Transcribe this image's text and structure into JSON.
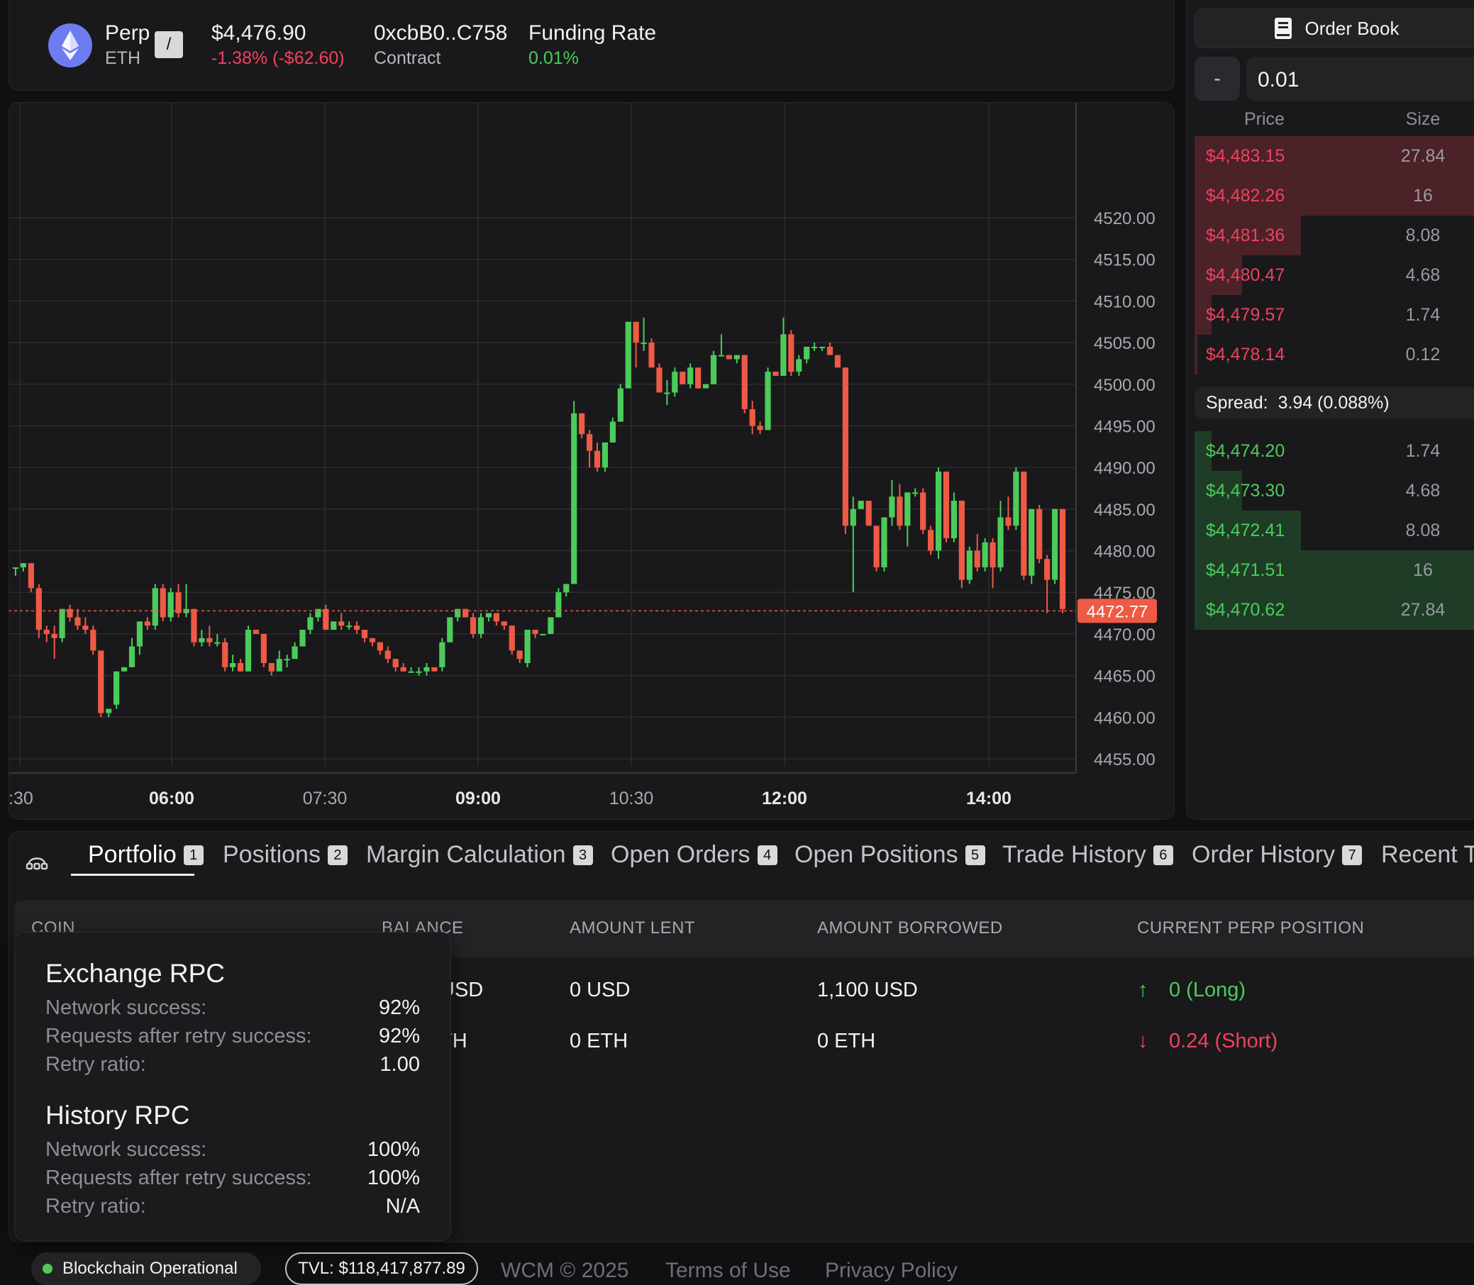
{
  "header": {
    "market_label": "Perp",
    "market_sub": "ETH",
    "slash_key": "/",
    "price": "$4,476.90",
    "change": "-1.38% (-$62.60)",
    "contract_value": "0xcbB0..C758",
    "contract_label": "Contract",
    "funding_label": "Funding Rate",
    "funding_value": "0.01%"
  },
  "chart_data": {
    "type": "candlestick",
    "y_ticks": [
      "4520.00",
      "4515.00",
      "4510.00",
      "4505.00",
      "4500.00",
      "4495.00",
      "4490.00",
      "4485.00",
      "4480.00",
      "4475.00",
      "4470.00",
      "4465.00",
      "4460.00",
      "4455.00"
    ],
    "ylim": [
      4453,
      4522
    ],
    "x_ticks": [
      {
        "label": ":30",
        "bold": false
      },
      {
        "label": "06:00",
        "bold": true
      },
      {
        "label": "07:30",
        "bold": false
      },
      {
        "label": "09:00",
        "bold": true
      },
      {
        "label": "10:30",
        "bold": false
      },
      {
        "label": "12:00",
        "bold": true
      },
      {
        "label": "14:00",
        "bold": true
      }
    ],
    "last_price": "4472.77",
    "last_price_value": 4472.77,
    "up_color": "#4ccb5a",
    "down_color": "#ef5a45",
    "candles": [
      [
        4478,
        4478,
        4477,
        4478
      ],
      [
        4478,
        4478.5,
        4477.5,
        4478.5
      ],
      [
        4478.5,
        4478.5,
        4475,
        4475.5
      ],
      [
        4475.5,
        4476,
        4469.5,
        4470.5
      ],
      [
        4470.5,
        4471,
        4469,
        4470
      ],
      [
        4470,
        4471,
        4467,
        4469.5
      ],
      [
        4469.5,
        4473,
        4469,
        4473
      ],
      [
        4473,
        4473.5,
        4471.5,
        4472
      ],
      [
        4472,
        4473,
        4470.5,
        4471
      ],
      [
        4471,
        4472,
        4470,
        4470.5
      ],
      [
        4470.5,
        4471,
        4467.5,
        4468
      ],
      [
        4468,
        4468,
        4460,
        4460.5
      ],
      [
        4460.5,
        4461,
        4460,
        4461
      ],
      [
        4461.5,
        4465.5,
        4461,
        4465.5
      ],
      [
        4465.5,
        4466,
        4465.5,
        4466
      ],
      [
        4466,
        4469.5,
        4466,
        4468.5
      ],
      [
        4468.5,
        4471.5,
        4467.5,
        4471.5
      ],
      [
        4471.5,
        4472,
        4470.5,
        4471
      ],
      [
        4471,
        4476,
        4470.5,
        4475.5
      ],
      [
        4475.5,
        4476,
        4471.5,
        4472
      ],
      [
        4472,
        4475.5,
        4471.5,
        4475
      ],
      [
        4475,
        4476,
        4472,
        4472.5
      ],
      [
        4472.5,
        4476,
        4472,
        4473
      ],
      [
        4473,
        4473,
        4468.5,
        4469
      ],
      [
        4469,
        4470.5,
        4468.5,
        4469.5
      ],
      [
        4469.5,
        4471,
        4468.5,
        4469
      ],
      [
        4469,
        4470,
        4468.5,
        4469
      ],
      [
        4469,
        4469.5,
        4465.5,
        4466
      ],
      [
        4466,
        4467.5,
        4465.5,
        4466.5
      ],
      [
        4466.5,
        4467,
        4465.5,
        4465.5
      ],
      [
        4465.5,
        4471,
        4465.5,
        4470.5
      ],
      [
        4470.5,
        4470.5,
        4470,
        4470
      ],
      [
        4470,
        4470,
        4466,
        4466.5
      ],
      [
        4466.5,
        4466.5,
        4465,
        4465.5
      ],
      [
        4465.5,
        4468,
        4465.5,
        4467
      ],
      [
        4467,
        4467.5,
        4466,
        4467
      ],
      [
        4467,
        4469,
        4467,
        4468.5
      ],
      [
        4468.5,
        4470.5,
        4468.5,
        4470.5
      ],
      [
        4470.5,
        4472.5,
        4470,
        4472
      ],
      [
        4472,
        4473,
        4471.5,
        4473
      ],
      [
        4473,
        4473.5,
        4470.5,
        4470.5
      ],
      [
        4470.5,
        4471.5,
        4470.5,
        4471.5
      ],
      [
        4471.5,
        4472.5,
        4470.5,
        4471
      ],
      [
        4471,
        4471.5,
        4470.5,
        4471
      ],
      [
        4471,
        4471.5,
        4470,
        4470.5
      ],
      [
        4470.5,
        4470.5,
        4469,
        4469.5
      ],
      [
        4469.5,
        4469.5,
        4468.5,
        4469
      ],
      [
        4469,
        4469,
        4467.5,
        4468
      ],
      [
        4468,
        4468.5,
        4466.5,
        4467
      ],
      [
        4467,
        4467,
        4465.5,
        4466
      ],
      [
        4466,
        4466.5,
        4465.5,
        4465.5
      ],
      [
        4465.5,
        4466,
        4465.5,
        4465.5
      ],
      [
        4465.5,
        4466,
        4465,
        4465.5
      ],
      [
        4465.5,
        4466.5,
        4465,
        4466
      ],
      [
        4466,
        4466,
        4465.5,
        4465.5
      ],
      [
        4466,
        4469.5,
        4465.5,
        4469
      ],
      [
        4469,
        4472,
        4469,
        4472
      ],
      [
        4472,
        4473,
        4471.5,
        4473
      ],
      [
        4473,
        4473,
        4472,
        4472
      ],
      [
        4472,
        4472.5,
        4469.5,
        4470
      ],
      [
        4470,
        4472.5,
        4469.5,
        4472
      ],
      [
        4472,
        4472.5,
        4471.5,
        4472.5
      ],
      [
        4472.5,
        4472.5,
        4471,
        4471.5
      ],
      [
        4471.5,
        4471.5,
        4470.5,
        4471
      ],
      [
        4471,
        4471,
        4467.5,
        4468
      ],
      [
        4468,
        4468,
        4466.5,
        4467
      ],
      [
        4466.5,
        4470.5,
        4466,
        4470.5
      ],
      [
        4470.5,
        4470.5,
        4469.5,
        4470
      ],
      [
        4470,
        4470,
        4470,
        4470
      ],
      [
        4470,
        4472,
        4470,
        4472
      ],
      [
        4472,
        4475.5,
        4472,
        4475
      ],
      [
        4475,
        4476,
        4474.5,
        4476
      ],
      [
        4476,
        4498,
        4476,
        4496.5
      ],
      [
        4496.5,
        4496.5,
        4493.5,
        4494
      ],
      [
        4494,
        4494.5,
        4490,
        4492
      ],
      [
        4492,
        4493,
        4489.5,
        4490
      ],
      [
        4490,
        4493,
        4489.5,
        4493
      ],
      [
        4493,
        4496,
        4493,
        4495.5
      ],
      [
        4495.5,
        4500,
        4495.5,
        4499.5
      ],
      [
        4499.5,
        4507.5,
        4499.5,
        4507.5
      ],
      [
        4507.5,
        4507.5,
        4502,
        4505
      ],
      [
        4505,
        4508,
        4504,
        4505
      ],
      [
        4505,
        4505.5,
        4502,
        4502
      ],
      [
        4502,
        4502.5,
        4499,
        4499
      ],
      [
        4499,
        4500.5,
        4497.5,
        4499
      ],
      [
        4499,
        4502,
        4498.5,
        4501.5
      ],
      [
        4501.5,
        4501.5,
        4500,
        4500
      ],
      [
        4500,
        4502.5,
        4499.5,
        4502
      ],
      [
        4502,
        4502,
        4499.5,
        4499.5
      ],
      [
        4499.5,
        4500,
        4499.5,
        4500
      ],
      [
        4500,
        4504,
        4500,
        4503.5
      ],
      [
        4503.5,
        4506,
        4503.5,
        4503.5
      ],
      [
        4503.5,
        4503.5,
        4503,
        4503
      ],
      [
        4503,
        4503.5,
        4502.5,
        4503.5
      ],
      [
        4503.5,
        4503.5,
        4496.5,
        4497
      ],
      [
        4497,
        4498,
        4494,
        4495
      ],
      [
        4495,
        4495.5,
        4494,
        4494.5
      ],
      [
        4494.5,
        4502,
        4494.5,
        4501.5
      ],
      [
        4501.5,
        4501.5,
        4501,
        4501
      ],
      [
        4501,
        4508,
        4501,
        4506
      ],
      [
        4506,
        4506.5,
        4501,
        4501.5
      ],
      [
        4501.5,
        4503.5,
        4501,
        4503
      ],
      [
        4503,
        4504.5,
        4502.5,
        4504.5
      ],
      [
        4504.5,
        4505,
        4504,
        4504.5
      ],
      [
        4504.5,
        4504.5,
        4504,
        4504.5
      ],
      [
        4504.5,
        4505,
        4504,
        4503.5
      ],
      [
        4503.5,
        4503.5,
        4502.5,
        4502
      ],
      [
        4502,
        4502,
        4482,
        4483
      ],
      [
        4483,
        4486.5,
        4475,
        4485
      ],
      [
        4485,
        4486,
        4485,
        4486
      ],
      [
        4486,
        4486,
        4483,
        4483
      ],
      [
        4483,
        4483,
        4477.5,
        4478
      ],
      [
        4478,
        4484,
        4477.5,
        4484
      ],
      [
        4484,
        4488.5,
        4483,
        4486.5
      ],
      [
        4486.5,
        4488,
        4482.5,
        4483
      ],
      [
        4483,
        4487,
        4480.5,
        4487
      ],
      [
        4487,
        4487.5,
        4486.5,
        4487
      ],
      [
        4487,
        4487.5,
        4482,
        4482.5
      ],
      [
        4482.5,
        4483,
        4479.5,
        4480
      ],
      [
        4480,
        4490,
        4479,
        4489.5
      ],
      [
        4489.5,
        4489.5,
        4481,
        4481.5
      ],
      [
        4481.5,
        4487,
        4481,
        4486
      ],
      [
        4486,
        4486,
        4475.5,
        4476.5
      ],
      [
        4476.5,
        4480.5,
        4476,
        4480
      ],
      [
        4480,
        4482,
        4477.5,
        4478
      ],
      [
        4478,
        4481.5,
        4477.5,
        4481
      ],
      [
        4481,
        4481.5,
        4475.5,
        4478
      ],
      [
        4478,
        4486,
        4477.5,
        4484
      ],
      [
        4484,
        4486.5,
        4482.5,
        4483
      ],
      [
        4483,
        4490,
        4482.5,
        4489.5
      ],
      [
        4489.5,
        4489.5,
        4476.5,
        4477
      ],
      [
        4477,
        4485,
        4476,
        4485
      ],
      [
        4485,
        4485.5,
        4478.5,
        4479
      ],
      [
        4479,
        4479.5,
        4472.5,
        4476.5
      ],
      [
        4476.5,
        4485,
        4476,
        4485
      ],
      [
        4485,
        4485,
        4472.5,
        4473
      ]
    ]
  },
  "orderbook": {
    "title": "Order Book",
    "minus_label": "-",
    "tick_size": "0.01",
    "col_price": "Price",
    "col_size": "Size",
    "asks": [
      {
        "price": "$4,483.15",
        "size": "27.84",
        "depth": 1.0
      },
      {
        "price": "$4,482.26",
        "size": "16",
        "depth": 1.0
      },
      {
        "price": "$4,481.36",
        "size": "8.08",
        "depth": 0.38
      },
      {
        "price": "$4,480.47",
        "size": "4.68",
        "depth": 0.17
      },
      {
        "price": "$4,479.57",
        "size": "1.74",
        "depth": 0.06
      },
      {
        "price": "$4,478.14",
        "size": "0.12",
        "depth": 0.01
      }
    ],
    "spread_label": "Spread:",
    "spread_value": "3.94 (0.088%)",
    "bids": [
      {
        "price": "$4,474.20",
        "size": "1.74",
        "depth": 0.06
      },
      {
        "price": "$4,473.30",
        "size": "4.68",
        "depth": 0.17
      },
      {
        "price": "$4,472.41",
        "size": "8.08",
        "depth": 0.38
      },
      {
        "price": "$4,471.51",
        "size": "16",
        "depth": 1.0
      },
      {
        "price": "$4,470.62",
        "size": "27.84",
        "depth": 1.0
      }
    ]
  },
  "tabs": [
    {
      "label": "Portfolio",
      "key": "1"
    },
    {
      "label": "Positions",
      "key": "2"
    },
    {
      "label": "Margin Calculation",
      "key": "3"
    },
    {
      "label": "Open Orders",
      "key": "4"
    },
    {
      "label": "Open Positions",
      "key": "5"
    },
    {
      "label": "Trade History",
      "key": "6"
    },
    {
      "label": "Order History",
      "key": "7"
    },
    {
      "label": "Recent T"
    }
  ],
  "table": {
    "headers": [
      "COIN",
      "BALANCE",
      "AMOUNT LENT",
      "AMOUNT BORROWED",
      "CURRENT PERP POSITION"
    ],
    "rows": [
      {
        "balance": "USD",
        "lent": "0 USD",
        "borrowed": "1,100 USD",
        "arrow": "↑",
        "perp": "0 (Long)"
      },
      {
        "balance": "TH",
        "lent": "0 ETH",
        "borrowed": "0 ETH",
        "arrow": "↓",
        "perp": "0.24 (Short)"
      }
    ]
  },
  "rpc_tooltip": {
    "exchange": {
      "title": "Exchange RPC",
      "rows": [
        {
          "label": "Network success:",
          "value": "92%"
        },
        {
          "label": "Requests after retry success:",
          "value": "92%"
        },
        {
          "label": "Retry ratio:",
          "value": "1.00"
        }
      ]
    },
    "history": {
      "title": "History RPC",
      "rows": [
        {
          "label": "Network success:",
          "value": "100%"
        },
        {
          "label": "Requests after retry success:",
          "value": "100%"
        },
        {
          "label": "Retry ratio:",
          "value": "N/A"
        }
      ]
    }
  },
  "footer": {
    "status": "Blockchain Operational",
    "tvl": "TVL: $118,417,877.89",
    "copyright": "WCM © 2025",
    "terms": "Terms of Use",
    "privacy": "Privacy Policy"
  }
}
